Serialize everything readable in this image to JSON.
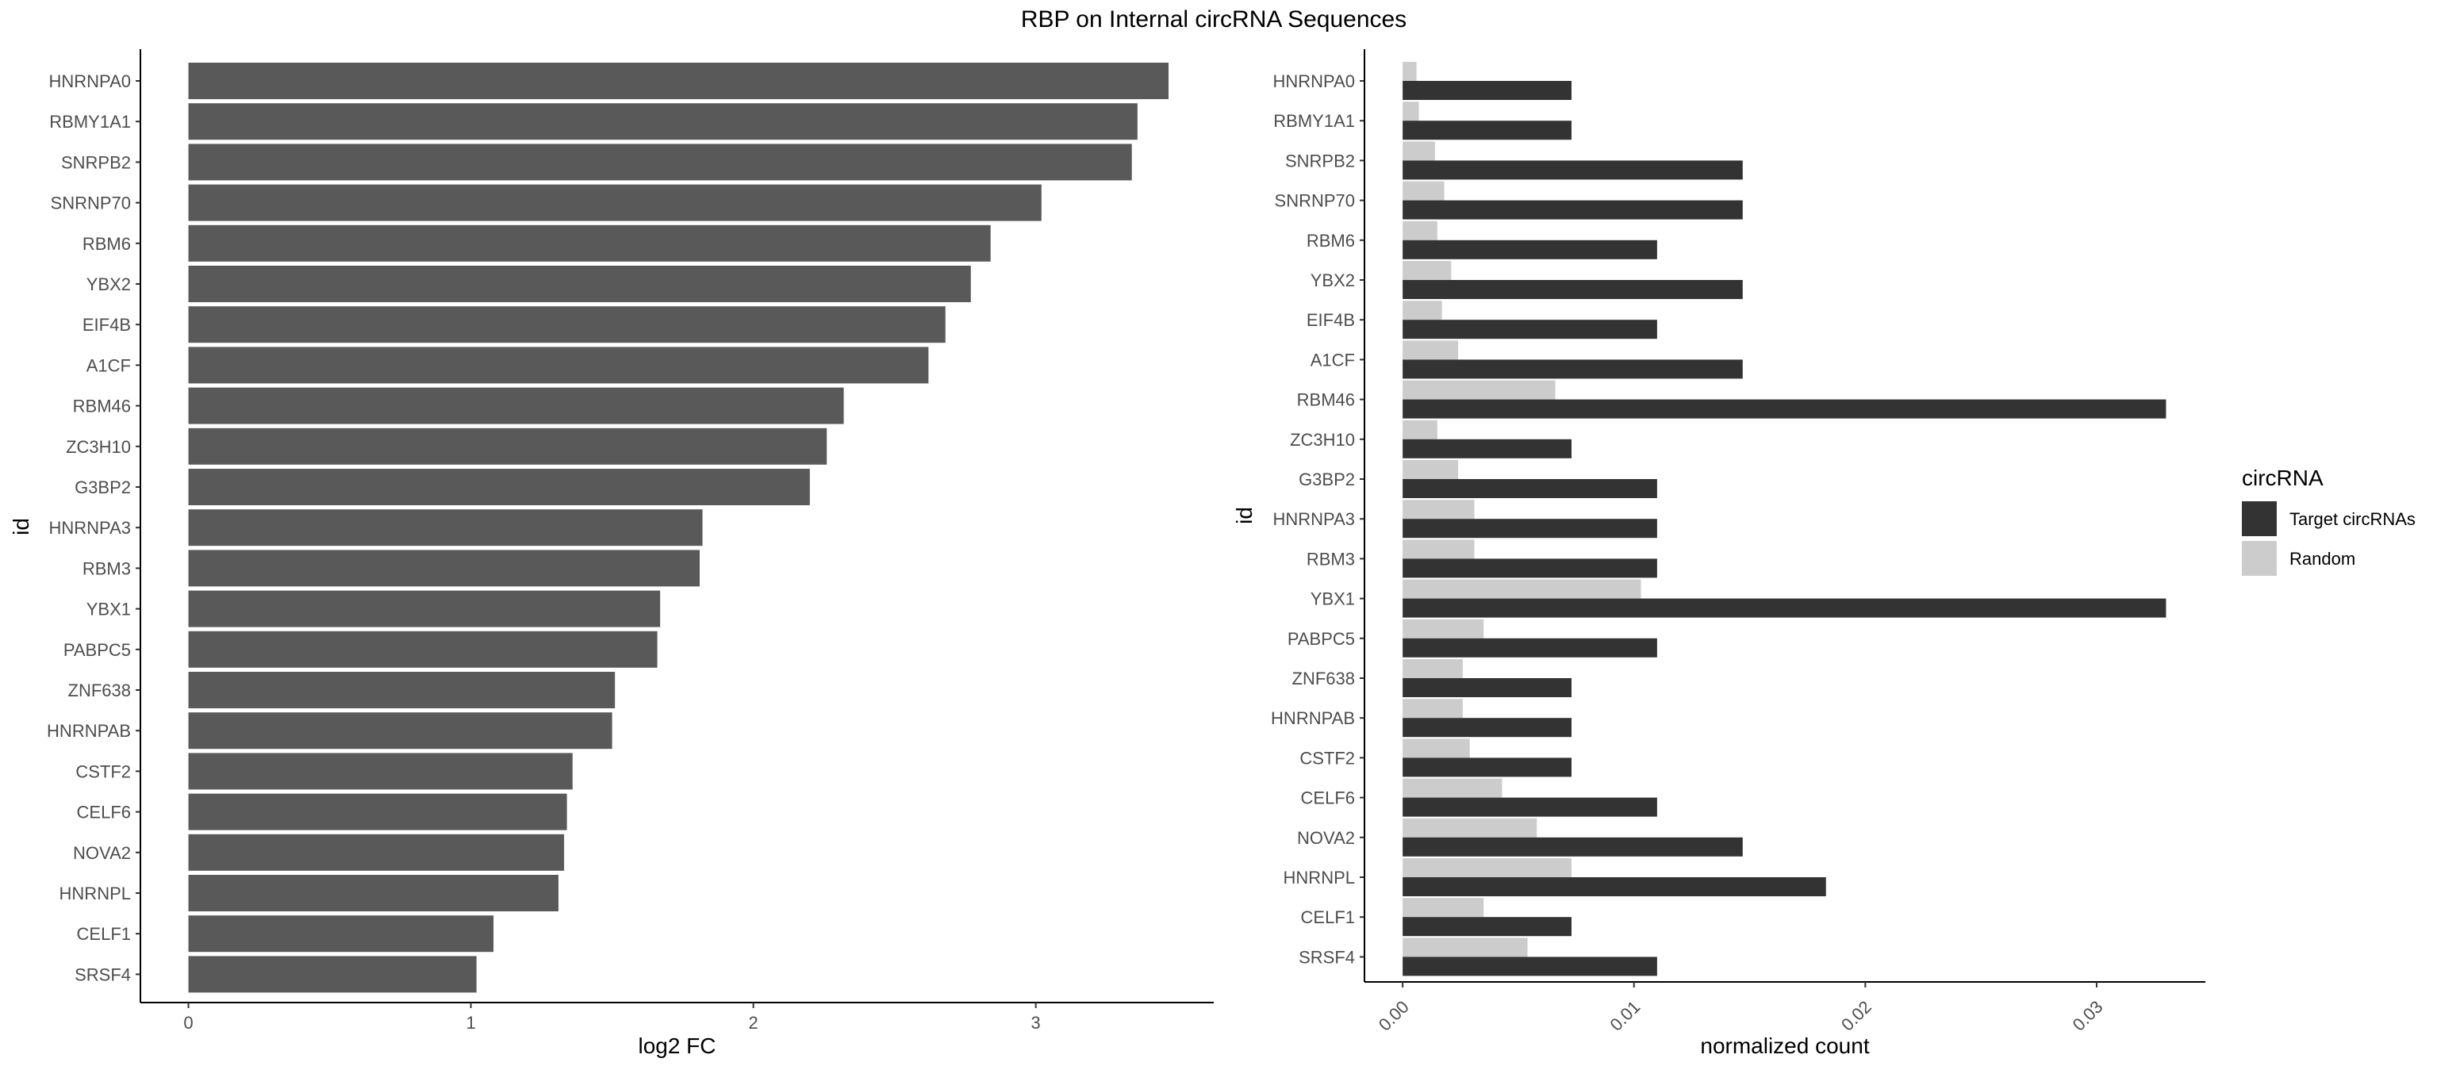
{
  "figure": {
    "title": "RBP on Internal circRNA Sequences"
  },
  "chart_data": [
    {
      "type": "bar",
      "orientation": "horizontal",
      "categories": [
        "HNRNPA0",
        "RBMY1A1",
        "SNRPB2",
        "SNRNP70",
        "RBM6",
        "YBX2",
        "EIF4B",
        "A1CF",
        "RBM46",
        "ZC3H10",
        "G3BP2",
        "HNRNPA3",
        "RBM3",
        "YBX1",
        "PABPC5",
        "ZNF638",
        "HNRNPAB",
        "CSTF2",
        "CELF6",
        "NOVA2",
        "HNRNPL",
        "CELF1",
        "SRSF4"
      ],
      "values": [
        3.47,
        3.36,
        3.34,
        3.02,
        2.84,
        2.77,
        2.68,
        2.62,
        2.32,
        2.26,
        2.2,
        1.82,
        1.81,
        1.67,
        1.66,
        1.51,
        1.5,
        1.36,
        1.34,
        1.33,
        1.31,
        1.08,
        1.02
      ],
      "xlabel": "log2 FC",
      "ylabel": "id",
      "xlim": [
        -0.17,
        3.63
      ],
      "xticks": [
        "0",
        "1",
        "2",
        "3"
      ],
      "bar_color": "#595959",
      "grid": false
    },
    {
      "type": "bar",
      "orientation": "horizontal",
      "grouped": true,
      "categories": [
        "HNRNPA0",
        "RBMY1A1",
        "SNRPB2",
        "SNRNP70",
        "RBM6",
        "YBX2",
        "EIF4B",
        "A1CF",
        "RBM46",
        "ZC3H10",
        "G3BP2",
        "HNRNPA3",
        "RBM3",
        "YBX1",
        "PABPC5",
        "ZNF638",
        "HNRNPAB",
        "CSTF2",
        "CELF6",
        "NOVA2",
        "HNRNPL",
        "CELF1",
        "SRSF4"
      ],
      "series": [
        {
          "name": "Target circRNAs",
          "color": "#333333",
          "values": [
            0.0073,
            0.0073,
            0.0147,
            0.0147,
            0.011,
            0.0147,
            0.011,
            0.0147,
            0.033,
            0.0073,
            0.011,
            0.011,
            0.011,
            0.033,
            0.011,
            0.0073,
            0.0073,
            0.0073,
            0.011,
            0.0147,
            0.0183,
            0.0073,
            0.011
          ]
        },
        {
          "name": "Random",
          "color": "#cccccc",
          "values": [
            0.0006,
            0.0007,
            0.0014,
            0.0018,
            0.0015,
            0.0021,
            0.0017,
            0.0024,
            0.0066,
            0.0015,
            0.0024,
            0.0031,
            0.0031,
            0.0103,
            0.0035,
            0.0026,
            0.0026,
            0.0029,
            0.0043,
            0.0058,
            0.0073,
            0.0035,
            0.0054
          ]
        }
      ],
      "xlabel": "normalized count",
      "ylabel": "id",
      "xlim": [
        -0.00165,
        0.0347
      ],
      "xticks": [
        {
          "value": 0.0,
          "label": "0.00"
        },
        {
          "value": 0.01,
          "label": "0.01"
        },
        {
          "value": 0.02,
          "label": "0.02"
        },
        {
          "value": 0.03,
          "label": "0.03"
        }
      ],
      "legend": {
        "title": "circRNA",
        "placement": "right"
      },
      "grid": false
    }
  ]
}
